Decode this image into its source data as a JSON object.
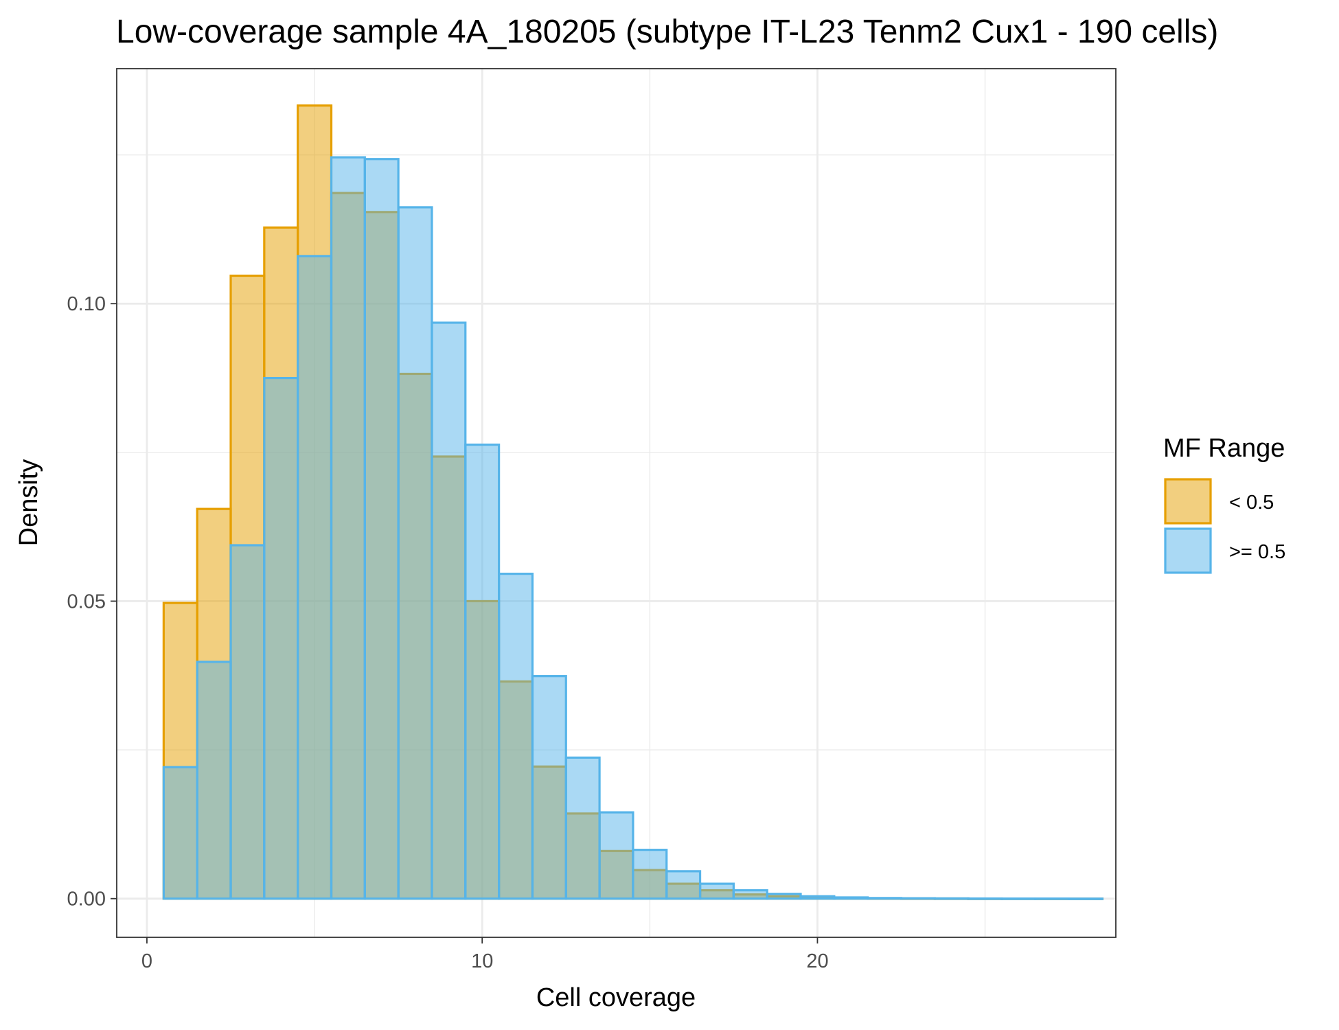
{
  "chart_data": {
    "type": "bar",
    "subtype": "overlaid-histogram",
    "title": "Low-coverage sample 4A_180205 (subtype IT-L23 Tenm2 Cux1 - 190 cells)",
    "xlabel": "Cell coverage",
    "ylabel": "Density",
    "xlim": [
      -0.9,
      28.9
    ],
    "ylim": [
      -0.0065,
      0.1395
    ],
    "x_ticks": [
      0,
      10,
      20
    ],
    "x_tick_labels": [
      "0",
      "10",
      "20"
    ],
    "x_minor_ticks": [
      5,
      15,
      25
    ],
    "y_ticks": [
      0,
      0.05,
      0.1
    ],
    "y_tick_labels": [
      "0.00",
      "0.05",
      "0.10"
    ],
    "y_minor_ticks": [
      0.025,
      0.075,
      0.125
    ],
    "bin_width": 1,
    "bin_centers": [
      1,
      2,
      3,
      4,
      5,
      6,
      7,
      8,
      9,
      10,
      11,
      12,
      13,
      14,
      15,
      16,
      17,
      18,
      19,
      20,
      21,
      22,
      23,
      24,
      25,
      26,
      27,
      28
    ],
    "grid": true,
    "legend": {
      "title": "MF Range",
      "position": "right"
    },
    "series": [
      {
        "name": "< 0.5",
        "fill": "#E69F00",
        "stroke": "#E69F00",
        "fill_opacity": 0.5,
        "values": [
          0.0497,
          0.0655,
          0.1047,
          0.1128,
          0.1333,
          0.1186,
          0.1154,
          0.0882,
          0.0743,
          0.05,
          0.0365,
          0.0222,
          0.0143,
          0.008,
          0.0048,
          0.0025,
          0.0014,
          0.0007,
          0.0004,
          0.0002,
          0.0001,
          5e-05,
          3e-05,
          2e-05,
          1e-05,
          1e-05,
          0.0,
          0.0
        ]
      },
      {
        "name": ">= 0.5",
        "fill": "#56B4E9",
        "stroke": "#56B4E9",
        "fill_opacity": 0.5,
        "values": [
          0.0221,
          0.0398,
          0.0594,
          0.0875,
          0.108,
          0.1246,
          0.1243,
          0.1162,
          0.0968,
          0.0763,
          0.0546,
          0.0374,
          0.0237,
          0.0145,
          0.0082,
          0.0046,
          0.0025,
          0.0014,
          0.0008,
          0.0004,
          0.0002,
          0.0001,
          6e-05,
          4e-05,
          2e-05,
          1e-05,
          1e-05,
          0.0
        ]
      }
    ]
  }
}
